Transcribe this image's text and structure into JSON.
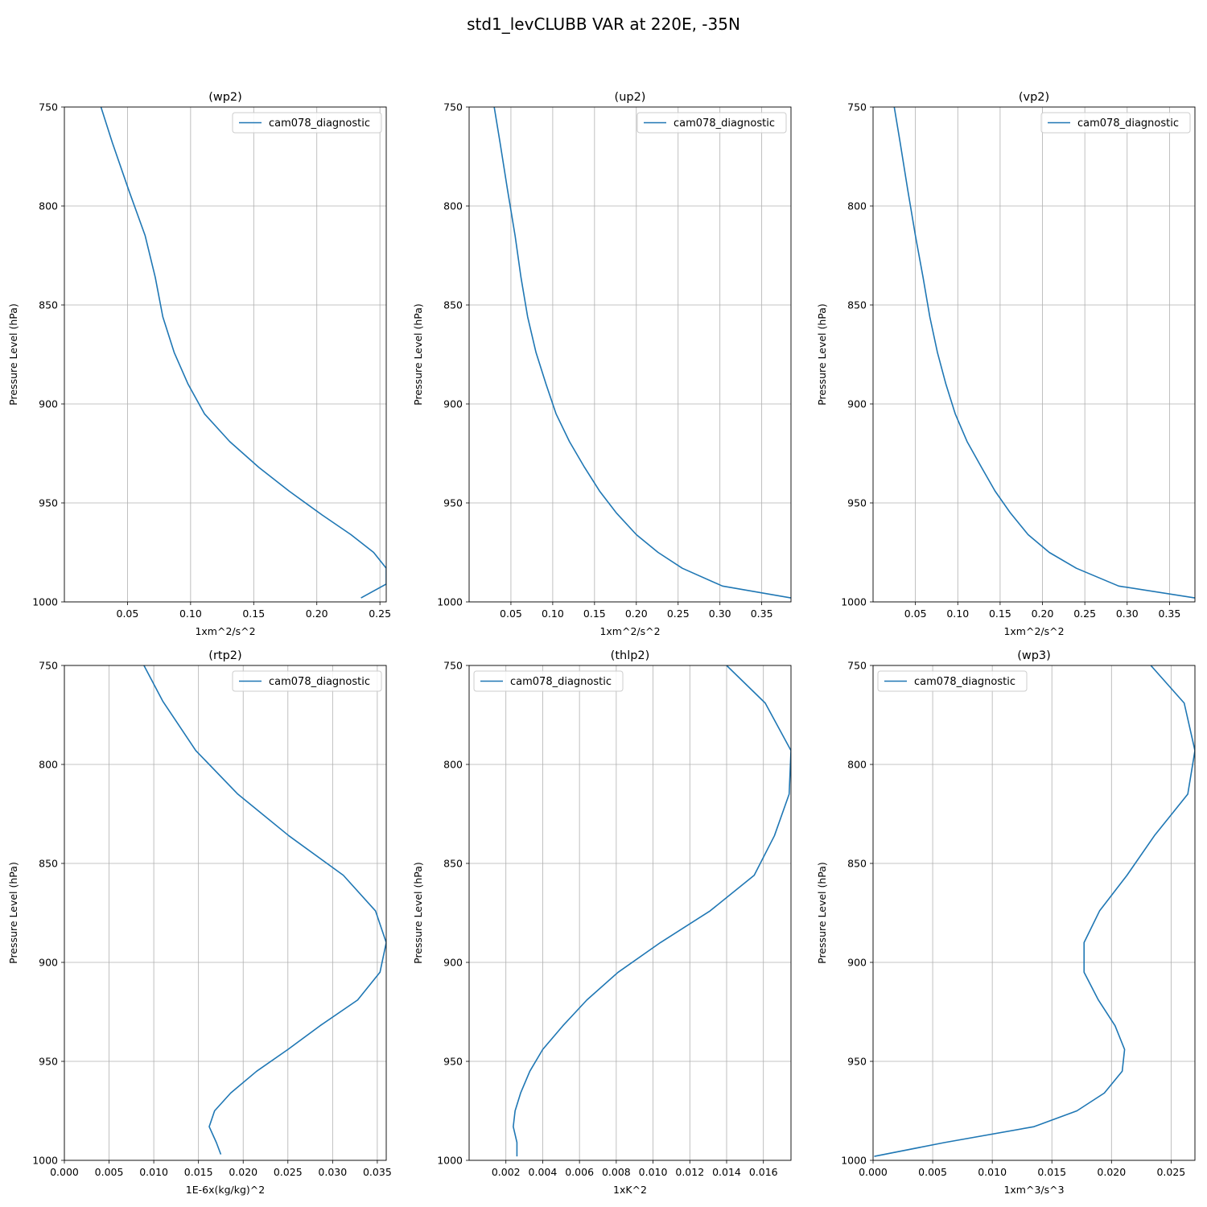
{
  "figure": {
    "title": "std1_levCLUBB VAR at 220E, -35N"
  },
  "chart_data": [
    {
      "type": "line",
      "title": "(wp2)",
      "xlabel": "1xm^2/s^2",
      "ylabel": "Pressure Level (hPa)",
      "xlim": [
        0.0,
        0.255
      ],
      "ylim": [
        1000,
        750
      ],
      "xticks": [
        0.05,
        0.1,
        0.15,
        0.2,
        0.25
      ],
      "xtick_labels": [
        "0.05",
        "0.10",
        "0.15",
        "0.20",
        "0.25"
      ],
      "yticks": [
        750,
        800,
        850,
        900,
        950,
        1000
      ],
      "grid": true,
      "legend_loc": "upper right",
      "series": [
        {
          "name": "cam078_diagnostic",
          "color": "#1f77b4",
          "x": [
            0.029,
            0.038,
            0.051,
            0.064,
            0.072,
            0.078,
            0.087,
            0.098,
            0.111,
            0.131,
            0.154,
            0.178,
            0.204,
            0.227,
            0.245,
            0.255,
            0.255,
            0.235
          ],
          "y": [
            750,
            768,
            792,
            815,
            836,
            856,
            874,
            890,
            905,
            919,
            932,
            944,
            956,
            966,
            975,
            983,
            991,
            998
          ]
        }
      ]
    },
    {
      "type": "line",
      "title": "(up2)",
      "xlabel": "1xm^2/s^2",
      "ylabel": "Pressure Level (hPa)",
      "xlim": [
        0.0,
        0.385
      ],
      "ylim": [
        1000,
        750
      ],
      "xticks": [
        0.05,
        0.1,
        0.15,
        0.2,
        0.25,
        0.3,
        0.35
      ],
      "xtick_labels": [
        "0.05",
        "0.10",
        "0.15",
        "0.20",
        "0.25",
        "0.30",
        "0.35"
      ],
      "yticks": [
        750,
        800,
        850,
        900,
        950,
        1000
      ],
      "grid": true,
      "legend_loc": "upper right",
      "series": [
        {
          "name": "cam078_diagnostic",
          "color": "#1f77b4",
          "x": [
            0.03,
            0.037,
            0.046,
            0.055,
            0.062,
            0.07,
            0.08,
            0.092,
            0.104,
            0.12,
            0.138,
            0.156,
            0.176,
            0.2,
            0.226,
            0.255,
            0.303,
            0.385
          ],
          "y": [
            750,
            768,
            792,
            815,
            836,
            856,
            874,
            890,
            905,
            919,
            932,
            944,
            955,
            966,
            975,
            983,
            992,
            998
          ]
        }
      ]
    },
    {
      "type": "line",
      "title": "(vp2)",
      "xlabel": "1xm^2/s^2",
      "ylabel": "Pressure Level (hPa)",
      "xlim": [
        0.0,
        0.38
      ],
      "ylim": [
        1000,
        750
      ],
      "xticks": [
        0.05,
        0.1,
        0.15,
        0.2,
        0.25,
        0.3,
        0.35
      ],
      "xtick_labels": [
        "0.05",
        "0.10",
        "0.15",
        "0.20",
        "0.25",
        "0.30",
        "0.35"
      ],
      "yticks": [
        750,
        800,
        850,
        900,
        950,
        1000
      ],
      "grid": true,
      "legend_loc": "upper right",
      "series": [
        {
          "name": "cam078_diagnostic",
          "color": "#1f77b4",
          "x": [
            0.025,
            0.032,
            0.041,
            0.05,
            0.059,
            0.067,
            0.076,
            0.086,
            0.097,
            0.111,
            0.128,
            0.144,
            0.162,
            0.183,
            0.208,
            0.24,
            0.29,
            0.38
          ],
          "y": [
            750,
            768,
            792,
            815,
            836,
            856,
            874,
            890,
            905,
            919,
            932,
            944,
            955,
            966,
            975,
            983,
            992,
            998
          ]
        }
      ]
    },
    {
      "type": "line",
      "title": "(rtp2)",
      "xlabel": "1E-6x(kg/kg)^2",
      "ylabel": "Pressure Level (hPa)",
      "xlim": [
        0.0,
        0.036
      ],
      "ylim": [
        1000,
        750
      ],
      "xticks": [
        0.0,
        0.005,
        0.01,
        0.015,
        0.02,
        0.025,
        0.03,
        0.035
      ],
      "xtick_labels": [
        "0.000",
        "0.005",
        "0.010",
        "0.015",
        "0.020",
        "0.025",
        "0.030",
        "0.035"
      ],
      "yticks": [
        750,
        800,
        850,
        900,
        950,
        1000
      ],
      "grid": true,
      "legend_loc": "upper right",
      "series": [
        {
          "name": "cam078_diagnostic",
          "color": "#1f77b4",
          "x": [
            0.0089,
            0.011,
            0.0147,
            0.0194,
            0.0251,
            0.0312,
            0.0348,
            0.036,
            0.0353,
            0.0328,
            0.0286,
            0.025,
            0.0215,
            0.0186,
            0.0168,
            0.0162,
            0.017,
            0.0175
          ],
          "y": [
            750,
            768,
            793,
            815,
            836,
            856,
            874,
            890,
            905,
            919,
            932,
            944,
            955,
            966,
            975,
            983,
            991,
            997
          ]
        }
      ]
    },
    {
      "type": "line",
      "title": "(thlp2)",
      "xlabel": "1xK^2",
      "ylabel": "Pressure Level (hPa)",
      "xlim": [
        0.0,
        0.0175
      ],
      "ylim": [
        1000,
        750
      ],
      "xticks": [
        0.002,
        0.004,
        0.006,
        0.008,
        0.01,
        0.012,
        0.014,
        0.016
      ],
      "xtick_labels": [
        "0.002",
        "0.004",
        "0.006",
        "0.008",
        "0.010",
        "0.012",
        "0.014",
        "0.016"
      ],
      "yticks": [
        750,
        800,
        850,
        900,
        950,
        1000
      ],
      "grid": true,
      "legend_loc": "upper left",
      "series": [
        {
          "name": "cam078_diagnostic",
          "color": "#1f77b4",
          "x": [
            0.014,
            0.0161,
            0.0175,
            0.0174,
            0.0166,
            0.0155,
            0.0131,
            0.0104,
            0.0081,
            0.0064,
            0.0051,
            0.004,
            0.0033,
            0.0028,
            0.0025,
            0.0024,
            0.0026,
            0.0026
          ],
          "y": [
            750,
            769,
            793,
            815,
            836,
            856,
            874,
            890,
            905,
            919,
            932,
            944,
            955,
            966,
            975,
            983,
            991,
            998
          ]
        }
      ]
    },
    {
      "type": "line",
      "title": "(wp3)",
      "xlabel": "1xm^3/s^3",
      "ylabel": "Pressure Level (hPa)",
      "xlim": [
        0.0,
        0.027
      ],
      "ylim": [
        1000,
        750
      ],
      "xticks": [
        0.0,
        0.005,
        0.01,
        0.015,
        0.02,
        0.025
      ],
      "xtick_labels": [
        "0.000",
        "0.005",
        "0.010",
        "0.015",
        "0.020",
        "0.025"
      ],
      "yticks": [
        750,
        800,
        850,
        900,
        950,
        1000
      ],
      "grid": true,
      "legend_loc": "upper left",
      "series": [
        {
          "name": "cam078_diagnostic",
          "color": "#1f77b4",
          "x": [
            0.0233,
            0.0261,
            0.027,
            0.0264,
            0.0236,
            0.0213,
            0.019,
            0.0177,
            0.0177,
            0.0189,
            0.0203,
            0.0211,
            0.0209,
            0.0194,
            0.0171,
            0.0135,
            0.006,
            0.0001
          ],
          "y": [
            750,
            769,
            793,
            815,
            836,
            856,
            874,
            890,
            905,
            919,
            932,
            944,
            955,
            966,
            975,
            983,
            991,
            998
          ]
        }
      ]
    }
  ]
}
